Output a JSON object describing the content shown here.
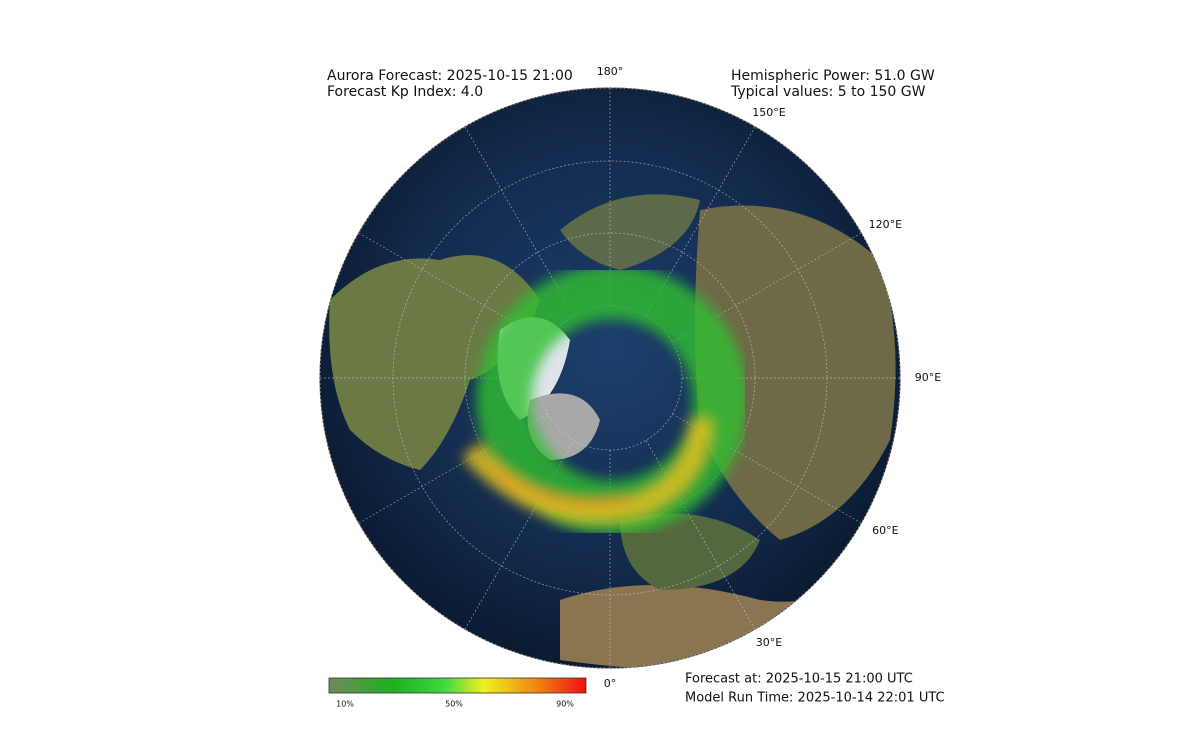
{
  "header": {
    "title": "Aurora Forecast: 2025-10-15 21:00",
    "kp": "Forecast Kp Index: 4.0",
    "power": "Hemispheric Power: 51.0 GW",
    "typical": "Typical values: 5 to 150 GW"
  },
  "map": {
    "longitude_labels": [
      "180°",
      "150°E",
      "120°E",
      "90°E",
      "60°E",
      "30°E",
      "0°"
    ]
  },
  "colorbar": {
    "ticks": [
      "10%",
      "50%",
      "90%"
    ]
  },
  "footer": {
    "forecast": "Forecast at: 2025-10-15 21:00 UTC",
    "model_run": "Model Run Time: 2025-10-14 22:01 UTC"
  }
}
